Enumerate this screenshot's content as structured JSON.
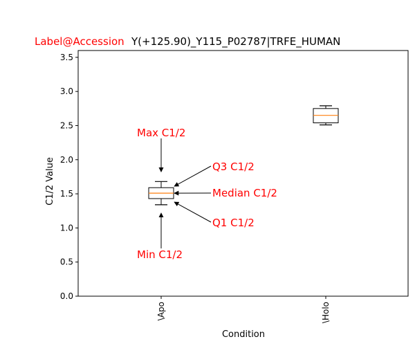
{
  "chart_data": {
    "type": "boxplot",
    "title_prefix": "Label@Accession",
    "title": "Y(+125.90)_Y115_P02787|TRFE_HUMAN",
    "xlabel": "Condition",
    "ylabel": "C1/2 Value",
    "categories": [
      "\\Apo",
      "\\Holo"
    ],
    "ylim": [
      0.0,
      3.6
    ],
    "yticks": [
      0.0,
      0.5,
      1.0,
      1.5,
      2.0,
      2.5,
      3.0,
      3.5
    ],
    "ytick_labels": [
      "0.0",
      "0.5",
      "1.0",
      "1.5",
      "2.0",
      "2.5",
      "3.0",
      "3.5"
    ],
    "boxes": [
      {
        "category": "\\Apo",
        "min": 1.34,
        "q1": 1.43,
        "median": 1.51,
        "q3": 1.59,
        "max": 1.68
      },
      {
        "category": "\\Holo",
        "min": 2.51,
        "q1": 2.54,
        "median": 2.65,
        "q3": 2.75,
        "max": 2.79
      }
    ],
    "annotations": [
      {
        "text": "Max C1/2",
        "target": "max"
      },
      {
        "text": "Q3 C1/2",
        "target": "q3"
      },
      {
        "text": "Median C1/2",
        "target": "median"
      },
      {
        "text": "Q1 C1/2",
        "target": "q1"
      },
      {
        "text": "Min C1/2",
        "target": "min"
      }
    ],
    "grid": false,
    "colors": {
      "annotation": "#ff0000",
      "median": "#ff7f0e",
      "box": "#000000"
    }
  }
}
